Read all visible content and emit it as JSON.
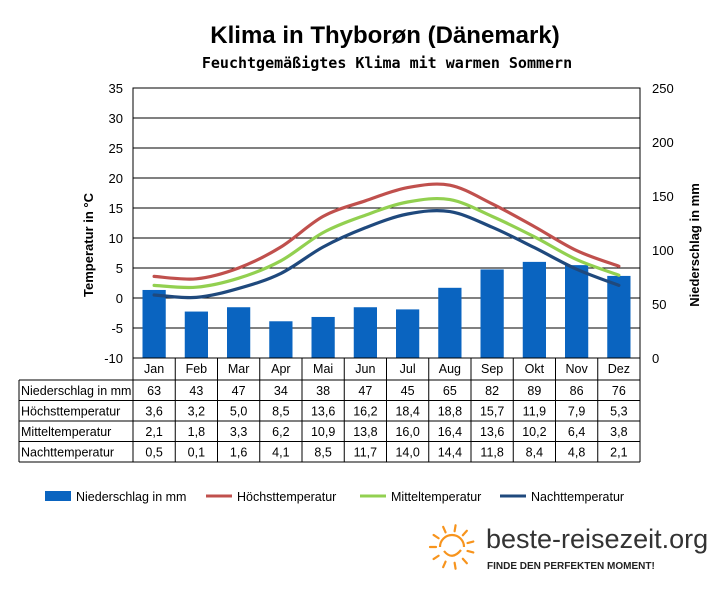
{
  "chart_data": {
    "type": "bar+line",
    "title": "Klima in Thyborøn (Dänemark)",
    "subtitle": "Feuchtgemäßigtes Klima mit warmen Sommern",
    "categories": [
      "Jan",
      "Feb",
      "Mar",
      "Apr",
      "Mai",
      "Jun",
      "Jul",
      "Aug",
      "Sep",
      "Okt",
      "Nov",
      "Dez"
    ],
    "ylabel_left": "Temperatur in °C",
    "ylabel_right": "Niederschlag in mm",
    "ylim_left": [
      -10,
      35
    ],
    "yticks_left": [
      -10,
      -5,
      0,
      5,
      10,
      15,
      20,
      25,
      30,
      35
    ],
    "ylim_right": [
      0,
      250
    ],
    "yticks_right": [
      0,
      50,
      100,
      150,
      200,
      250
    ],
    "grid": true,
    "legend_position": "bottom",
    "bar_series": {
      "name": "Niederschlag in mm",
      "color": "#0a64c0",
      "values": [
        63,
        43,
        47,
        34,
        38,
        47,
        45,
        65,
        82,
        89,
        86,
        76
      ],
      "display": [
        "63",
        "43",
        "47",
        "34",
        "38",
        "47",
        "45",
        "65",
        "82",
        "89",
        "86",
        "76"
      ]
    },
    "line_series": [
      {
        "name": "Höchsttemperatur",
        "color": "#c0504d",
        "values": [
          3.6,
          3.2,
          5.0,
          8.5,
          13.6,
          16.2,
          18.4,
          18.8,
          15.7,
          11.9,
          7.9,
          5.3
        ],
        "display": [
          "3,6",
          "3,2",
          "5,0",
          "8,5",
          "13,6",
          "16,2",
          "18,4",
          "18,8",
          "15,7",
          "11,9",
          "7,9",
          "5,3"
        ]
      },
      {
        "name": "Mitteltemperatur",
        "color": "#92d050",
        "values": [
          2.1,
          1.8,
          3.3,
          6.2,
          10.9,
          13.8,
          16.0,
          16.4,
          13.6,
          10.2,
          6.4,
          3.8
        ],
        "display": [
          "2,1",
          "1,8",
          "3,3",
          "6,2",
          "10,9",
          "13,8",
          "16,0",
          "16,4",
          "13,6",
          "10,2",
          "6,4",
          "3,8"
        ]
      },
      {
        "name": "Nachttemperatur",
        "color": "#1f497d",
        "values": [
          0.5,
          0.1,
          1.6,
          4.1,
          8.5,
          11.7,
          14.0,
          14.4,
          11.8,
          8.4,
          4.8,
          2.1
        ],
        "display": [
          "0,5",
          "0,1",
          "1,6",
          "4,1",
          "8,5",
          "11,7",
          "14,0",
          "14,4",
          "11,8",
          "8,4",
          "4,8",
          "2,1"
        ]
      }
    ]
  },
  "branding": {
    "name": "beste-reisezeit.org",
    "tagline": "FINDE DEN PERFEKTEN MOMENT!",
    "accent_color": "#f7941d",
    "icon": "sun-icon"
  }
}
